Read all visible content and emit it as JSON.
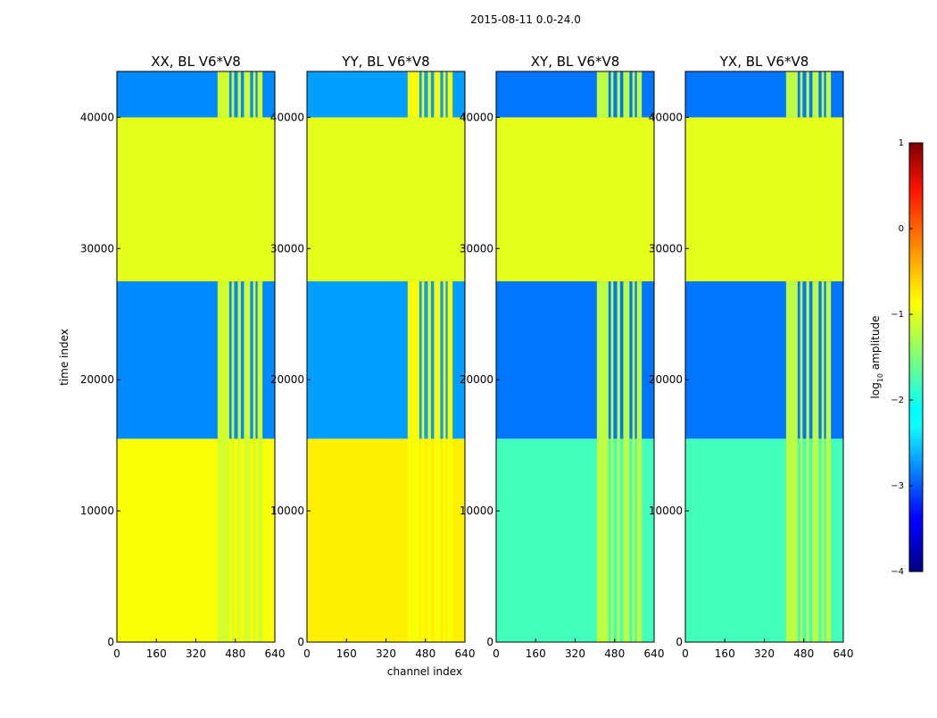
{
  "suptitle": "2015-08-11 0.0-24.0",
  "chart_data": {
    "type": "heatmap",
    "xlabel": "channel index",
    "ylabel": "time index",
    "xlim": [
      0,
      640
    ],
    "ylim": [
      0,
      43500
    ],
    "xticks": [
      0,
      160,
      320,
      480,
      640
    ],
    "yticks": [
      0,
      10000,
      20000,
      30000,
      40000
    ],
    "panels": [
      {
        "title": "XX, BL V6*V8",
        "lower_level": -0.9,
        "upper_level": -2.7,
        "vertical_band_level": -1.1
      },
      {
        "title": "YY, BL V6*V8",
        "lower_level": -0.8,
        "upper_level": -2.6,
        "vertical_band_level": -0.9
      },
      {
        "title": "XY, BL V6*V8",
        "lower_level": -1.8,
        "upper_level": -2.8,
        "vertical_band_level": -1.2
      },
      {
        "title": "YX, BL V6*V8",
        "lower_level": -1.8,
        "upper_level": -2.8,
        "vertical_band_level": -1.2
      }
    ],
    "flagged_time_ranges": [
      [
        27500,
        40000
      ]
    ],
    "flagged_level": -1.0,
    "vertical_bands_channels": [
      [
        408,
        455
      ],
      [
        465,
        475
      ],
      [
        490,
        502
      ],
      [
        515,
        540
      ],
      [
        552,
        562
      ],
      [
        570,
        590
      ]
    ],
    "colorbar": {
      "label_prefix": "log",
      "label_subscript": "10",
      "label_suffix": " amplitude",
      "range": [
        -4,
        1
      ],
      "ticks": [
        "1",
        "0",
        "−1",
        "−2",
        "−3",
        "−4"
      ],
      "colormap": "jet"
    }
  }
}
